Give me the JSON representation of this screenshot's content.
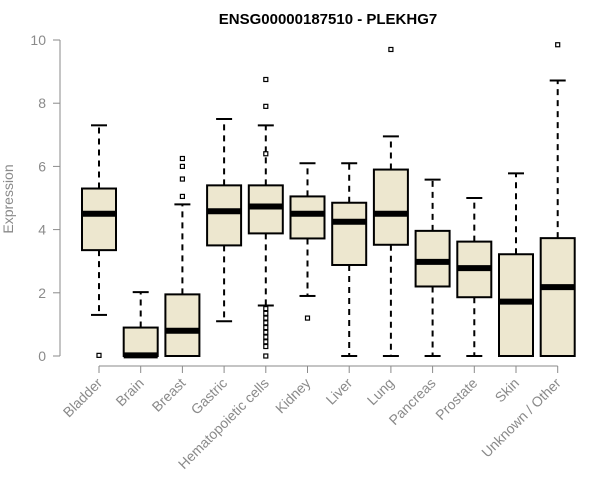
{
  "chart_data": {
    "type": "boxplot",
    "title": "ENSG00000187510 - PLEKHG7",
    "ylabel": "Expression",
    "xlabel": "",
    "ylim": [
      0,
      10
    ],
    "yticks": [
      0,
      2,
      4,
      6,
      8,
      10
    ],
    "grid": false,
    "legend": "none",
    "colors": {
      "box_fill": "#ede7cf",
      "stroke": "#000000",
      "axis": "#8a8a8a"
    },
    "categories": [
      "Bladder",
      "Brain",
      "Breast",
      "Gastric",
      "Hematopoietic cells",
      "Kidney",
      "Liver",
      "Lung",
      "Pancreas",
      "Prostate",
      "Skin",
      "Unknown / Other"
    ],
    "boxes": [
      {
        "category": "Bladder",
        "whisker_low": 1.3,
        "q1": 3.35,
        "median": 4.5,
        "q3": 5.3,
        "whisker_high": 7.3,
        "outliers": [
          0.02
        ]
      },
      {
        "category": "Brain",
        "whisker_low": 0.0,
        "q1": 0.0,
        "median": 0.02,
        "q3": 0.9,
        "whisker_high": 2.02,
        "outliers": []
      },
      {
        "category": "Breast",
        "whisker_low": 0.0,
        "q1": 0.0,
        "median": 0.8,
        "q3": 1.95,
        "whisker_high": 4.8,
        "outliers": [
          5.05,
          5.6,
          6.0,
          6.25
        ]
      },
      {
        "category": "Gastric",
        "whisker_low": 1.1,
        "q1": 3.5,
        "median": 4.58,
        "q3": 5.4,
        "whisker_high": 7.5,
        "outliers": []
      },
      {
        "category": "Hematopoietic cells",
        "whisker_low": 1.6,
        "q1": 3.88,
        "median": 4.73,
        "q3": 5.4,
        "whisker_high": 7.3,
        "outliers": [
          0.0,
          0.3,
          0.45,
          0.6,
          0.75,
          0.9,
          1.05,
          1.2,
          1.35,
          1.5,
          6.4,
          7.9,
          8.75
        ]
      },
      {
        "category": "Kidney",
        "whisker_low": 1.9,
        "q1": 3.72,
        "median": 4.5,
        "q3": 5.05,
        "whisker_high": 6.1,
        "outliers": [
          1.2
        ]
      },
      {
        "category": "Liver",
        "whisker_low": 0.0,
        "q1": 2.88,
        "median": 4.25,
        "q3": 4.85,
        "whisker_high": 6.1,
        "outliers": []
      },
      {
        "category": "Lung",
        "whisker_low": 0.0,
        "q1": 3.52,
        "median": 4.5,
        "q3": 5.9,
        "whisker_high": 6.95,
        "outliers": [
          9.7
        ]
      },
      {
        "category": "Pancreas",
        "whisker_low": 0.0,
        "q1": 2.2,
        "median": 2.98,
        "q3": 3.96,
        "whisker_high": 5.58,
        "outliers": []
      },
      {
        "category": "Prostate",
        "whisker_low": 0.0,
        "q1": 1.86,
        "median": 2.78,
        "q3": 3.62,
        "whisker_high": 5.0,
        "outliers": []
      },
      {
        "category": "Skin",
        "whisker_low": 0.0,
        "q1": 0.0,
        "median": 1.72,
        "q3": 3.22,
        "whisker_high": 5.78,
        "outliers": []
      },
      {
        "category": "Unknown / Other",
        "whisker_low": 0.0,
        "q1": 0.0,
        "median": 2.18,
        "q3": 3.73,
        "whisker_high": 8.72,
        "outliers": [
          9.85
        ]
      }
    ]
  }
}
